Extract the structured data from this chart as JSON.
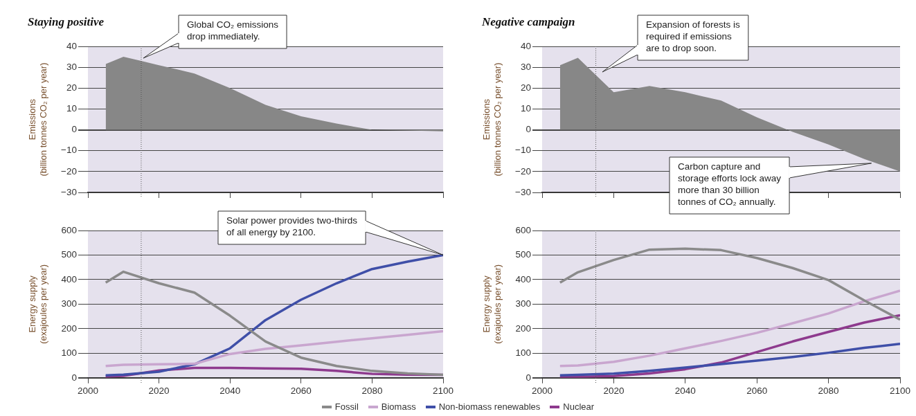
{
  "chart_data": [
    {
      "type": "area",
      "title": "Staying positive",
      "ylabel": "Emissions\n(billion tonnes CO₂ per year)",
      "x": [
        2005,
        2010,
        2015,
        2020,
        2030,
        2040,
        2050,
        2060,
        2070,
        2080,
        2090,
        2100
      ],
      "values": [
        31.5,
        35,
        33,
        31,
        27,
        20,
        12,
        6.5,
        3,
        0,
        -0.3,
        -0.7
      ],
      "color": "#878787",
      "xlim": [
        2000,
        2100
      ],
      "xticks": [
        {
          "value": 2000,
          "label": null
        },
        {
          "value": 2020,
          "label": null
        },
        {
          "value": 2040,
          "label": null
        },
        {
          "value": 2060,
          "label": null
        },
        {
          "value": 2080,
          "label": null
        },
        {
          "value": 2100,
          "label": null
        }
      ],
      "ylim": [
        -30,
        40
      ],
      "yticks": [
        -30,
        -20,
        -10,
        0,
        10,
        20,
        30,
        40
      ],
      "tick_labels": "y",
      "grid": "y",
      "ref_lines": [
        {
          "axis": "x",
          "value": 2015,
          "line_style": "dotted"
        }
      ],
      "annotations": [
        "Global CO₂ emissions\ndrop immediately."
      ]
    },
    {
      "type": "area",
      "title": "Negative campaign",
      "ylabel": "Emissions\n(billion tonnes CO₂ per year)",
      "x": [
        2005,
        2010,
        2020,
        2030,
        2040,
        2050,
        2060,
        2070,
        2080,
        2090,
        2100
      ],
      "values": [
        31,
        34.5,
        18,
        21,
        18,
        14,
        6,
        -1,
        -7,
        -14,
        -20
      ],
      "color": "#878787",
      "xlim": [
        2000,
        2100
      ],
      "xticks": [
        {
          "value": 2000,
          "label": null
        },
        {
          "value": 2020,
          "label": null
        },
        {
          "value": 2040,
          "label": null
        },
        {
          "value": 2060,
          "label": null
        },
        {
          "value": 2080,
          "label": null
        },
        {
          "value": 2100,
          "label": null
        }
      ],
      "ylim": [
        -30,
        40
      ],
      "yticks": [
        -30,
        -20,
        -10,
        0,
        10,
        20,
        30,
        40
      ],
      "tick_labels": "y",
      "grid": "y",
      "ref_lines": [
        {
          "axis": "x",
          "value": 2015,
          "line_style": "dotted"
        }
      ],
      "annotations": [
        "Expansion of forests is\nrequired if emissions\nare to drop soon.",
        {
          "text": "Carbon capture and\nstorage efforts lock away\nmore than 30 billion\ntonnes of CO₂ annually.",
          "x": 2092,
          "y": -16
        }
      ]
    },
    {
      "type": "line",
      "ylabel": "Energy supply\n(exajoules per year)",
      "x": [
        2005,
        2010,
        2020,
        2030,
        2040,
        2050,
        2060,
        2070,
        2080,
        2090,
        2100
      ],
      "series": [
        {
          "name": "Fossil",
          "color": "#8a8a8a",
          "values": [
            388,
            432,
            385,
            347,
            253,
            148,
            82,
            48,
            28,
            18,
            12
          ]
        },
        {
          "name": "Biomass",
          "color": "#c9a6cf",
          "values": [
            48,
            53,
            55,
            57,
            97,
            118,
            132,
            147,
            161,
            175,
            190
          ]
        },
        {
          "name": "Non-biomass renewables",
          "color": "#3f4fa8",
          "values": [
            10,
            13,
            25,
            55,
            120,
            235,
            318,
            385,
            443,
            473,
            500
          ]
        },
        {
          "name": "Nuclear",
          "color": "#8e3a8e",
          "values": [
            5,
            8,
            30,
            40,
            40,
            38,
            37,
            28,
            16,
            13,
            12
          ]
        }
      ],
      "xlim": [
        2000,
        2100
      ],
      "xticks": [
        2000,
        2020,
        2040,
        2060,
        2080,
        2100
      ],
      "ylim": [
        0,
        600
      ],
      "yticks": [
        0,
        100,
        200,
        300,
        400,
        500,
        600
      ],
      "grid": "y",
      "legend": "bottom",
      "ref_lines": [
        {
          "axis": "x",
          "value": 2015,
          "line_style": "dotted"
        }
      ],
      "annotations": [
        {
          "text": "Solar power provides two-thirds\nof all energy by 2100.",
          "x": 2100,
          "y": 500
        }
      ]
    },
    {
      "type": "line",
      "ylabel": "Energy supply\n(exajoules per year)",
      "x": [
        2005,
        2010,
        2020,
        2030,
        2040,
        2050,
        2060,
        2070,
        2080,
        2090,
        2100
      ],
      "series": [
        {
          "color": "#8a8a8a",
          "values": [
            388,
            430,
            480,
            522,
            526,
            520,
            488,
            447,
            398,
            315,
            237
          ]
        },
        {
          "color": "#c9a6cf",
          "values": [
            48,
            50,
            65,
            90,
            120,
            150,
            183,
            222,
            262,
            312,
            355
          ]
        },
        {
          "color": "#3f4fa8",
          "values": [
            10,
            12,
            17,
            28,
            42,
            56,
            70,
            85,
            102,
            122,
            138
          ]
        },
        {
          "color": "#8e3a8e",
          "values": [
            3,
            4,
            7,
            18,
            35,
            62,
            105,
            148,
            187,
            225,
            255
          ]
        }
      ],
      "xlim": [
        2000,
        2100
      ],
      "xticks": [
        2000,
        2020,
        2040,
        2060,
        2080,
        2100
      ],
      "ylim": [
        0,
        600
      ],
      "yticks": [
        0,
        100,
        200,
        300,
        400,
        500,
        600
      ],
      "grid": "y",
      "ref_lines": [
        {
          "axis": "x",
          "value": 2015,
          "line_style": "dotted"
        }
      ]
    }
  ]
}
